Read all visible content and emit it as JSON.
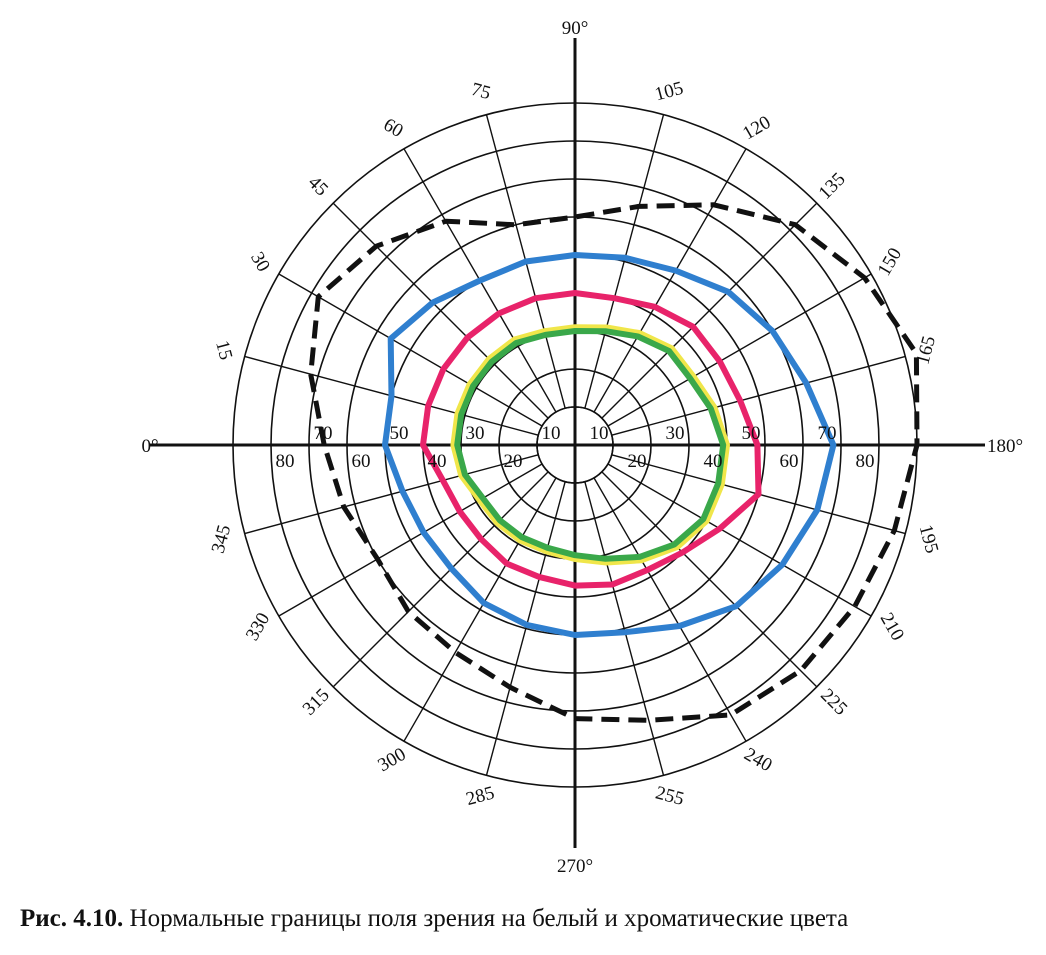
{
  "chart_data": {
    "type": "polar",
    "figure_number": "Рис. 4.10.",
    "caption": "Нормальные границы поля зрения на белый и хроматические цвета",
    "angle_labels": [
      {
        "angle": 0,
        "text": "0°"
      },
      {
        "angle": 15,
        "text": "15"
      },
      {
        "angle": 30,
        "text": "30"
      },
      {
        "angle": 45,
        "text": "45"
      },
      {
        "angle": 60,
        "text": "60"
      },
      {
        "angle": 75,
        "text": "75"
      },
      {
        "angle": 90,
        "text": "90°"
      },
      {
        "angle": 105,
        "text": "105"
      },
      {
        "angle": 120,
        "text": "120"
      },
      {
        "angle": 135,
        "text": "135"
      },
      {
        "angle": 150,
        "text": "150"
      },
      {
        "angle": 165,
        "text": "165"
      },
      {
        "angle": 180,
        "text": "180°"
      },
      {
        "angle": 195,
        "text": "195"
      },
      {
        "angle": 210,
        "text": "210"
      },
      {
        "angle": 225,
        "text": "225"
      },
      {
        "angle": 240,
        "text": "240"
      },
      {
        "angle": 255,
        "text": "255"
      },
      {
        "angle": 270,
        "text": "270°"
      },
      {
        "angle": 285,
        "text": "285"
      },
      {
        "angle": 300,
        "text": "300"
      },
      {
        "angle": 315,
        "text": "315"
      },
      {
        "angle": 330,
        "text": "330"
      },
      {
        "angle": 345,
        "text": "345"
      }
    ],
    "radial_rings": [
      10,
      20,
      30,
      40,
      50,
      60,
      70,
      80,
      90
    ],
    "radial_labels_upper": [
      "10",
      "30",
      "50",
      "70"
    ],
    "radial_labels_lower": [
      "20",
      "40",
      "60",
      "80"
    ],
    "series": [
      {
        "style": "dashed",
        "color": "#111111",
        "points": [
          [
            0,
            66
          ],
          [
            15,
            72
          ],
          [
            30,
            78
          ],
          [
            45,
            74
          ],
          [
            60,
            68
          ],
          [
            75,
            60
          ],
          [
            90,
            60
          ],
          [
            105,
            65
          ],
          [
            120,
            73
          ],
          [
            135,
            82
          ],
          [
            150,
            88
          ],
          [
            165,
            93
          ],
          [
            180,
            90
          ],
          [
            195,
            87
          ],
          [
            210,
            85
          ],
          [
            225,
            84
          ],
          [
            240,
            82
          ],
          [
            255,
            75
          ],
          [
            270,
            72
          ],
          [
            285,
            66
          ],
          [
            300,
            63
          ],
          [
            315,
            62
          ],
          [
            330,
            60
          ],
          [
            345,
            63
          ]
        ]
      },
      {
        "color": "#2f7fcf",
        "points": [
          [
            0,
            50
          ],
          [
            15,
            50
          ],
          [
            30,
            56
          ],
          [
            45,
            53
          ],
          [
            60,
            50
          ],
          [
            75,
            50
          ],
          [
            90,
            50
          ],
          [
            105,
            51
          ],
          [
            120,
            53
          ],
          [
            135,
            57
          ],
          [
            150,
            60
          ],
          [
            165,
            63
          ],
          [
            180,
            68
          ],
          [
            195,
            66
          ],
          [
            210,
            63
          ],
          [
            225,
            60
          ],
          [
            240,
            55
          ],
          [
            255,
            51
          ],
          [
            270,
            50
          ],
          [
            285,
            49
          ],
          [
            300,
            48
          ],
          [
            315,
            46
          ],
          [
            330,
            46
          ],
          [
            345,
            47
          ]
        ]
      },
      {
        "color": "#e8236a",
        "points": [
          [
            0,
            40
          ],
          [
            15,
            40
          ],
          [
            30,
            40
          ],
          [
            45,
            40
          ],
          [
            60,
            40
          ],
          [
            75,
            40
          ],
          [
            90,
            40
          ],
          [
            105,
            40
          ],
          [
            120,
            42
          ],
          [
            135,
            44
          ],
          [
            150,
            44
          ],
          [
            165,
            45
          ],
          [
            180,
            48
          ],
          [
            195,
            50
          ],
          [
            210,
            44
          ],
          [
            225,
            40
          ],
          [
            240,
            38
          ],
          [
            255,
            38
          ],
          [
            270,
            37
          ],
          [
            285,
            36
          ],
          [
            300,
            36
          ],
          [
            315,
            35
          ],
          [
            330,
            35
          ],
          [
            345,
            36
          ]
        ]
      },
      {
        "color": "#f0e64a",
        "points": [
          [
            0,
            32
          ],
          [
            15,
            32
          ],
          [
            30,
            32
          ],
          [
            45,
            32
          ],
          [
            60,
            32
          ],
          [
            75,
            31
          ],
          [
            90,
            31
          ],
          [
            105,
            32
          ],
          [
            120,
            34
          ],
          [
            135,
            36
          ],
          [
            150,
            36
          ],
          [
            165,
            38
          ],
          [
            180,
            40
          ],
          [
            195,
            40
          ],
          [
            210,
            40
          ],
          [
            225,
            38
          ],
          [
            240,
            35
          ],
          [
            255,
            32
          ],
          [
            270,
            30
          ],
          [
            285,
            29
          ],
          [
            300,
            29
          ],
          [
            315,
            29
          ],
          [
            330,
            29
          ],
          [
            345,
            31
          ]
        ]
      },
      {
        "color": "#3aa84a",
        "points": [
          [
            0,
            31
          ],
          [
            15,
            31
          ],
          [
            30,
            31
          ],
          [
            45,
            31
          ],
          [
            60,
            31
          ],
          [
            75,
            30
          ],
          [
            90,
            30
          ],
          [
            105,
            31
          ],
          [
            120,
            33
          ],
          [
            135,
            35
          ],
          [
            150,
            35
          ],
          [
            165,
            37
          ],
          [
            180,
            39
          ],
          [
            195,
            39
          ],
          [
            210,
            39
          ],
          [
            225,
            37
          ],
          [
            240,
            34
          ],
          [
            255,
            31
          ],
          [
            270,
            29
          ],
          [
            285,
            28
          ],
          [
            300,
            28
          ],
          [
            315,
            28
          ],
          [
            330,
            28
          ],
          [
            345,
            30
          ]
        ]
      }
    ]
  }
}
